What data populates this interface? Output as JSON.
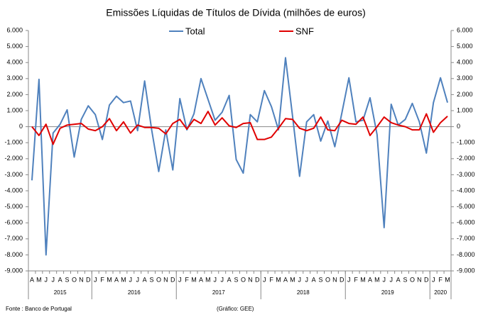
{
  "chart_data": {
    "type": "line",
    "title": "Emissões Líquidas de Títulos de Dívida (milhões de euros)",
    "categories": [
      "A",
      "M",
      "J",
      "J",
      "A",
      "S",
      "O",
      "N",
      "D",
      "J",
      "F",
      "M",
      "A",
      "M",
      "J",
      "J",
      "A",
      "S",
      "O",
      "N",
      "D",
      "J",
      "F",
      "M",
      "A",
      "M",
      "J",
      "J",
      "A",
      "S",
      "O",
      "N",
      "D",
      "J",
      "F",
      "M",
      "A",
      "M",
      "J",
      "J",
      "A",
      "S",
      "O",
      "N",
      "D",
      "J",
      "F",
      "M",
      "A",
      "M",
      "J",
      "J",
      "A",
      "S",
      "O",
      "N",
      "D",
      "J",
      "F",
      "M"
    ],
    "category_groups": [
      {
        "label": "2015",
        "size": 9
      },
      {
        "label": "2016",
        "size": 12
      },
      {
        "label": "2017",
        "size": 12
      },
      {
        "label": "2018",
        "size": 12
      },
      {
        "label": "2019",
        "size": 12
      },
      {
        "label": "2020",
        "size": 3
      }
    ],
    "series": [
      {
        "name": "Total",
        "color": "#4f81bd",
        "values": [
          -3350,
          2950,
          -8000,
          -400,
          150,
          1050,
          -1900,
          450,
          1300,
          750,
          -800,
          1350,
          1900,
          1500,
          1600,
          -250,
          2850,
          -200,
          -2800,
          -200,
          -2700,
          1750,
          -200,
          800,
          3000,
          1700,
          400,
          900,
          1950,
          -2050,
          -2900,
          750,
          300,
          2250,
          1250,
          -200,
          4300,
          650,
          -3100,
          300,
          750,
          -900,
          350,
          -1250,
          850,
          3050,
          300,
          400,
          1800,
          -500,
          -6300,
          1400,
          100,
          450,
          1450,
          300,
          -1650,
          1500,
          3050,
          1500
        ]
      },
      {
        "name": "SNF",
        "color": "#e00000",
        "values": [
          0,
          -550,
          150,
          -1100,
          -100,
          100,
          150,
          200,
          -150,
          -250,
          0,
          500,
          -250,
          300,
          -400,
          100,
          -50,
          -50,
          -100,
          -450,
          200,
          450,
          -150,
          450,
          200,
          950,
          100,
          550,
          50,
          -50,
          200,
          250,
          -800,
          -800,
          -650,
          -100,
          500,
          450,
          -100,
          -250,
          -100,
          600,
          -200,
          -250,
          400,
          200,
          150,
          600,
          -550,
          0,
          600,
          250,
          100,
          0,
          -200,
          -200,
          800,
          -350,
          250,
          650
        ]
      }
    ],
    "ylim": [
      -9000,
      6000
    ],
    "yticks": [
      {
        "value": 6000,
        "label": "6.000"
      },
      {
        "value": 5000,
        "label": "5.000"
      },
      {
        "value": 4000,
        "label": "4.000"
      },
      {
        "value": 3000,
        "label": "3.000"
      },
      {
        "value": 2000,
        "label": "2.000"
      },
      {
        "value": 1000,
        "label": "1.000"
      },
      0,
      {
        "value": -1000,
        "label": "-1.000"
      },
      {
        "value": -2000,
        "label": "-2.000"
      },
      {
        "value": -3000,
        "label": "-3.000"
      },
      {
        "value": -4000,
        "label": "-4.000"
      },
      {
        "value": -5000,
        "label": "-5.000"
      },
      {
        "value": -6000,
        "label": "-6.000"
      },
      {
        "value": -7000,
        "label": "-7.000"
      },
      {
        "value": -8000,
        "label": "-8.000"
      },
      {
        "value": -9000,
        "label": "-9.000"
      }
    ],
    "y2lim": [
      -9000,
      6000
    ],
    "y2ticks": [
      {
        "value": 6000,
        "label": "6.000"
      },
      {
        "value": 5000,
        "label": "5.000"
      },
      {
        "value": 4000,
        "label": "4.000"
      },
      {
        "value": 3000,
        "label": "3.000"
      },
      {
        "value": 2000,
        "label": "2.000"
      },
      {
        "value": 1000,
        "label": "1.000"
      },
      0,
      {
        "value": -1000,
        "label": "-1.000"
      },
      {
        "value": -2000,
        "label": "-2.000"
      },
      {
        "value": -3000,
        "label": "-3.000"
      },
      {
        "value": -4000,
        "label": "-4.000"
      },
      {
        "value": -5000,
        "label": "-5.000"
      },
      {
        "value": -6000,
        "label": "-6.000"
      },
      {
        "value": -7000,
        "label": "-7.000"
      },
      {
        "value": -8000,
        "label": "-8.000"
      },
      {
        "value": -9000,
        "label": "-9.000"
      }
    ],
    "source": "Fonte : Banco de Portugal",
    "note": "(Gráfico: GEE)"
  }
}
